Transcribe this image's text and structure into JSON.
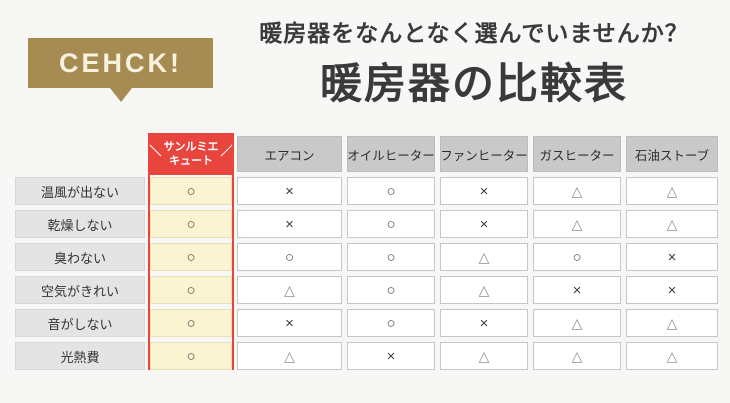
{
  "badge": {
    "label": "CEHCK!"
  },
  "header": {
    "subtitle": "暖房器をなんとなく選んでいませんか？",
    "title": "暖房器の比較表"
  },
  "table": {
    "highlight_header": {
      "left_mark": "＼",
      "line1": "サンルミエ",
      "line2": "キュート",
      "right_mark": "／"
    }
  },
  "chart_data": {
    "type": "table",
    "title": "暖房器の比較表",
    "subtitle": "暖房器をなんとなく選んでいませんか？",
    "columns": [
      "サンルミエキュート",
      "エアコン",
      "オイルヒーター",
      "ファンヒーター",
      "ガスヒーター",
      "石油ストーブ"
    ],
    "rows": [
      "温風が出ない",
      "乾燥しない",
      "臭わない",
      "空気がきれい",
      "音がしない",
      "光熱費"
    ],
    "values": [
      [
        "○",
        "×",
        "○",
        "×",
        "△",
        "△"
      ],
      [
        "○",
        "×",
        "○",
        "×",
        "△",
        "△"
      ],
      [
        "○",
        "○",
        "○",
        "△",
        "○",
        "×"
      ],
      [
        "○",
        "△",
        "○",
        "△",
        "×",
        "×"
      ],
      [
        "○",
        "×",
        "○",
        "×",
        "△",
        "△"
      ],
      [
        "○",
        "△",
        "×",
        "△",
        "△",
        "△"
      ]
    ]
  },
  "colors": {
    "accent_red": "#e8453e",
    "badge_gold": "#a68b52",
    "highlight_cell_bg": "#faf4d2",
    "header_gray": "#c9c9c9",
    "label_gray": "#e4e4e4"
  }
}
